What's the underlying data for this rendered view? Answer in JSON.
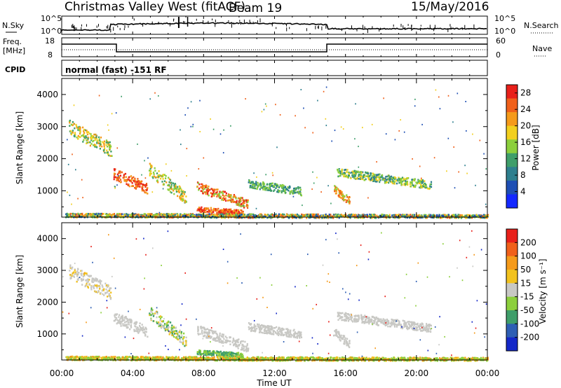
{
  "header": {
    "title": "Christmas Valley West (fitACF)",
    "beam": "Beam 19",
    "date": "15/May/2016"
  },
  "noise_panel": {
    "left_label": "N.Sky",
    "right_label": "N.Search",
    "left_ticks": [
      "10^5",
      "10^0"
    ],
    "right_ticks": [
      "10^5",
      "10^0"
    ]
  },
  "freq_panel": {
    "left_label": "Freq.",
    "left_unit": "[MHz]",
    "left_ticks": [
      "18",
      "8"
    ],
    "right_label": "Nave",
    "right_ticks": [
      "60",
      "0"
    ]
  },
  "cpid": {
    "label": "CPID",
    "value": "normal (fast) -151 RF"
  },
  "colors": {
    "power_scale": [
      "#1428ff",
      "#1e4fb4",
      "#2e7f8e",
      "#3f9e6a",
      "#8ccf3c",
      "#f2cf1e",
      "#f59a1a",
      "#f0601a",
      "#e8201a"
    ],
    "velocity_scale": [
      "#e8201a",
      "#f0601a",
      "#f59a1a",
      "#f2c21e",
      "#c8c8c4",
      "#8ccf3c",
      "#3f9e6a",
      "#2e5fb4",
      "#1428c8"
    ],
    "ground_scatter": "#c8c8c4"
  },
  "chart_data": [
    {
      "type": "heatmap",
      "panel": "power",
      "xlabel": "",
      "ylabel": "Slant Range [km]",
      "x_ticks": [
        "00:00",
        "04:00",
        "08:00",
        "12:00",
        "16:00",
        "20:00",
        "00:00"
      ],
      "y_ticks": [
        1000,
        2000,
        3000,
        4000
      ],
      "ylim": [
        180,
        4500
      ],
      "colorbar": {
        "label": "Power [dB]",
        "ticks": [
          4,
          8,
          12,
          16,
          20,
          24,
          28
        ],
        "range": [
          0,
          30
        ]
      }
    },
    {
      "type": "heatmap",
      "panel": "velocity",
      "xlabel": "Time UT",
      "ylabel": "Slant Range [km]",
      "x_ticks": [
        "00:00",
        "04:00",
        "08:00",
        "12:00",
        "16:00",
        "20:00",
        "00:00"
      ],
      "y_ticks": [
        1000,
        2000,
        3000,
        4000
      ],
      "ylim": [
        180,
        4500
      ],
      "colorbar": {
        "label": "Velocity [m s⁻¹]",
        "ticks": [
          "200",
          "100",
          "50",
          "15",
          "-15",
          "-50",
          "-100",
          "-200"
        ],
        "range": [
          -250,
          250
        ]
      }
    }
  ]
}
